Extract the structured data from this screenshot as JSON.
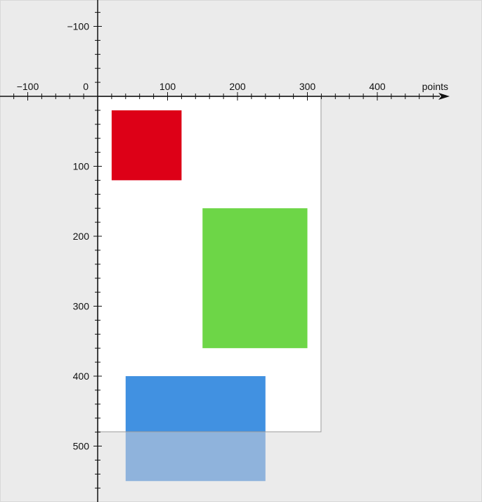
{
  "chart_data": {
    "type": "coordinate-diagram",
    "x_axis": {
      "label": "points",
      "ticks": [
        -100,
        0,
        100,
        200,
        300,
        400
      ],
      "tick_labels": [
        "−100",
        "0",
        "100",
        "200",
        "300",
        "400"
      ],
      "direction": "right"
    },
    "y_axis": {
      "label": "",
      "ticks": [
        -100,
        100,
        200,
        300,
        400,
        500
      ],
      "tick_labels": [
        "−100",
        "100",
        "200",
        "300",
        "400",
        "500"
      ],
      "direction": "down"
    },
    "page": {
      "x": 0,
      "y": 0,
      "width": 320,
      "height": 480,
      "fill": "#ffffff",
      "stroke": "#999999"
    },
    "rectangles": [
      {
        "name": "red-rect",
        "x": 20,
        "y": 20,
        "width": 100,
        "height": 100,
        "fill": "#dd0017"
      },
      {
        "name": "green-rect",
        "x": 150,
        "y": 160,
        "width": 150,
        "height": 200,
        "fill": "#6dd647"
      },
      {
        "name": "blue-rect",
        "x": 40,
        "y": 400,
        "width": 200,
        "height": 150,
        "fill": "#4191e1",
        "overflow_fill": "#8fb3dc"
      }
    ],
    "colors": {
      "background": "#ebebeb",
      "axis": "#111111"
    }
  }
}
